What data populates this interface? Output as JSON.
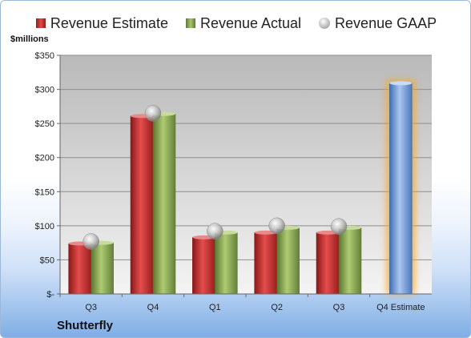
{
  "legend": {
    "estimate": "Revenue Estimate",
    "actual": "Revenue Actual",
    "gaap": "Revenue GAAP"
  },
  "units_label": "$millions",
  "company": "Shutterfly",
  "chart_data": {
    "type": "bar",
    "categories": [
      "Q3",
      "Q4",
      "Q1",
      "Q2",
      "Q3",
      "Q4 Estimate"
    ],
    "series": [
      {
        "name": "Revenue Estimate",
        "values": [
          74,
          261,
          83,
          90,
          90,
          null
        ],
        "color": "#c0392b"
      },
      {
        "name": "Revenue Actual",
        "values": [
          75,
          264,
          90,
          97,
          97,
          null
        ],
        "color": "#8aaa52"
      },
      {
        "name": "Revenue GAAP",
        "values": [
          77,
          265,
          92,
          100,
          99,
          null
        ],
        "color": "#b8b8b8"
      }
    ],
    "forecast": {
      "category": "Q4 Estimate",
      "value": 309,
      "color": "#6f9ad8",
      "glow": "#f5a623"
    },
    "ylim": [
      0,
      350
    ],
    "yticks": [
      0,
      50,
      100,
      150,
      200,
      250,
      300,
      350
    ],
    "ytick_labels": [
      "$-",
      "$50",
      "$100",
      "$150",
      "$200",
      "$250",
      "$300",
      "$350"
    ],
    "grid": true,
    "legend_position": "top"
  }
}
